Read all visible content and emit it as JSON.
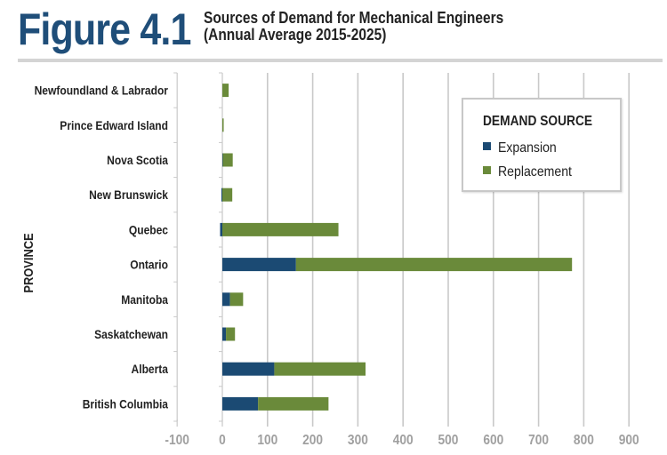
{
  "header": {
    "figure_label": "Figure 4.1",
    "title_line1": "Sources of Demand for Mechanical Engineers",
    "title_line2": "(Annual Average 2015-2025)"
  },
  "colors": {
    "expansion": "#1b4a73",
    "replacement": "#6a8a3a",
    "figure_label": "#1f4e79",
    "grid": "#c9c9c9",
    "tick_label": "#a0a0a0"
  },
  "chart_data": {
    "type": "bar",
    "orientation": "horizontal",
    "stacked": true,
    "title": "Sources of Demand for Mechanical Engineers (Annual Average 2015-2025)",
    "xlabel": "",
    "ylabel": "PROVINCE",
    "xlim": [
      -100,
      900
    ],
    "xticks": [
      -100,
      0,
      100,
      200,
      300,
      400,
      500,
      600,
      700,
      800,
      900
    ],
    "grid": true,
    "legend": {
      "title": "DEMAND SOURCE",
      "position": "top-right",
      "entries": [
        "Expansion",
        "Replacement"
      ]
    },
    "categories": [
      "Newfoundland & Labrador",
      "Prince Edward Island",
      "Nova Scotia",
      "New Brunswick",
      "Quebec",
      "Ontario",
      "Manitoba",
      "Saskatchewan",
      "Alberta",
      "British Columbia"
    ],
    "series": [
      {
        "name": "Expansion",
        "values": [
          0,
          0,
          1,
          -2,
          -5,
          163,
          17,
          8,
          115,
          79
        ]
      },
      {
        "name": "Replacement",
        "values": [
          14,
          3,
          22,
          22,
          257,
          611,
          29,
          20,
          202,
          156
        ]
      }
    ]
  }
}
